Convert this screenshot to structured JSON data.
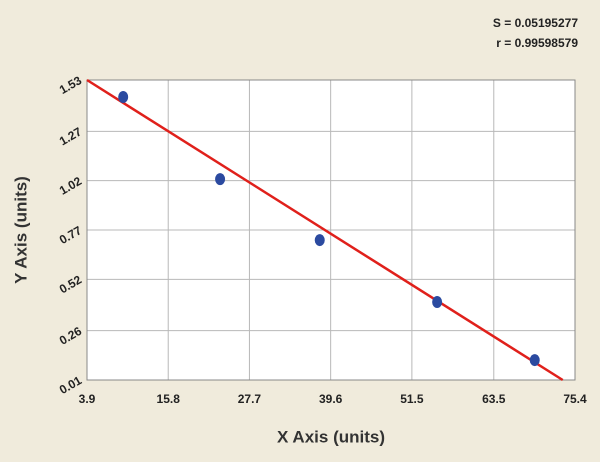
{
  "chart_data": {
    "type": "scatter",
    "x_label": "X Axis (units)",
    "y_label": "Y Axis (units)",
    "annotations": [
      "S = 0.05195277",
      "r = 0.99598579"
    ],
    "series": [
      {
        "color": "#2b4aa0",
        "x": [
          9.2,
          23.4,
          38.0,
          55.2,
          69.5
        ],
        "values": [
          1.444,
          1.028,
          0.719,
          0.405,
          0.111
        ]
      }
    ],
    "fit_line": {
      "color": "#e0201b",
      "x": [
        3.9,
        73.6
      ],
      "values": [
        1.53,
        0.01
      ]
    },
    "xlim": [
      3.9,
      75.4
    ],
    "xticks": [
      3.9,
      15.8,
      27.7,
      39.6,
      51.5,
      63.5,
      75.4
    ],
    "ylim": [
      0.01,
      1.53
    ],
    "yticks": [
      0.01,
      0.26,
      0.52,
      0.77,
      1.02,
      1.27,
      1.53
    ],
    "grid": true
  }
}
